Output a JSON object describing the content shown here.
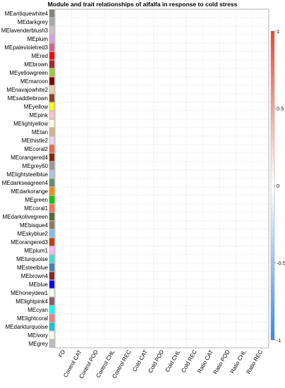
{
  "chart_data": {
    "type": "heatmap",
    "title": "Module and trait relationships of alfalfa in response to cold stress",
    "xlabel": "",
    "ylabel": "",
    "rows": [
      "MEantiquewhite4",
      "MEdarkgrey",
      "MElavenderblush3",
      "MEplum",
      "MEpalevioletred3",
      "MEred",
      "MEbrown",
      "MEyellowgreen",
      "MEmaroon",
      "MEnavajowhite2",
      "MEsaddlebrown",
      "MEyellow",
      "MEpink",
      "MElightyellow",
      "MEtan",
      "MEthistle2",
      "MEcoral2",
      "MEorangered4",
      "MEgrey60",
      "MElightsteelblue",
      "MEdarkseagreen4",
      "MEdarkorange",
      "MEgreen",
      "MEcoral1",
      "MEdarkolivegreen",
      "MEbisque4",
      "MEskyblue2",
      "MEorangered3",
      "MEplum1",
      "MEturquoise",
      "MEsteelblue",
      "MEbrown4",
      "MEblue",
      "MEhoneydew1",
      "MElightpink4",
      "MEcyan",
      "MElightcoral",
      "MEdarkturquoise",
      "MEivory",
      "MEgrey"
    ],
    "row_colors": [
      "#8B8378",
      "#A9A9A9",
      "#CDC1C5",
      "#DDA0DD",
      "#CD6889",
      "#FF0000",
      "#A52A2A",
      "#9ACD32",
      "#800000",
      "#EECFA1",
      "#8B4513",
      "#FFFF00",
      "#FFC0CB",
      "#FFFFE0",
      "#D2B48C",
      "#EED2EE",
      "#EE6A50",
      "#8B2500",
      "#999999",
      "#B0C4DE",
      "#698B69",
      "#FF8C00",
      "#00CD00",
      "#FF7256",
      "#556B2F",
      "#8B7D6B",
      "#7EC0EE",
      "#CD3700",
      "#FFBBFF",
      "#40E0D0",
      "#4682B4",
      "#8B2323",
      "#0000FF",
      "#F0FFF0",
      "#8B5F65",
      "#00FFFF",
      "#F08080",
      "#00CED1",
      "#FFFFF0",
      "#BEBEBE"
    ],
    "columns": [
      "FD",
      "Control CAT",
      "Control POD",
      "Control CHL",
      "Control REC",
      "Cold CAT",
      "Cold POD",
      "Cold CHL",
      "Cold REC",
      "Ratio CAT",
      "Ratio POD",
      "Ratio CHL",
      "Ratio REC"
    ],
    "values": null,
    "colorbar": {
      "min": -1,
      "max": 1,
      "ticks": [
        -1,
        -0.5,
        0,
        0.5,
        1
      ],
      "low_color": "#2E8BEF",
      "mid_color": "#FFFFFF",
      "high_color": "#E8482C"
    }
  }
}
